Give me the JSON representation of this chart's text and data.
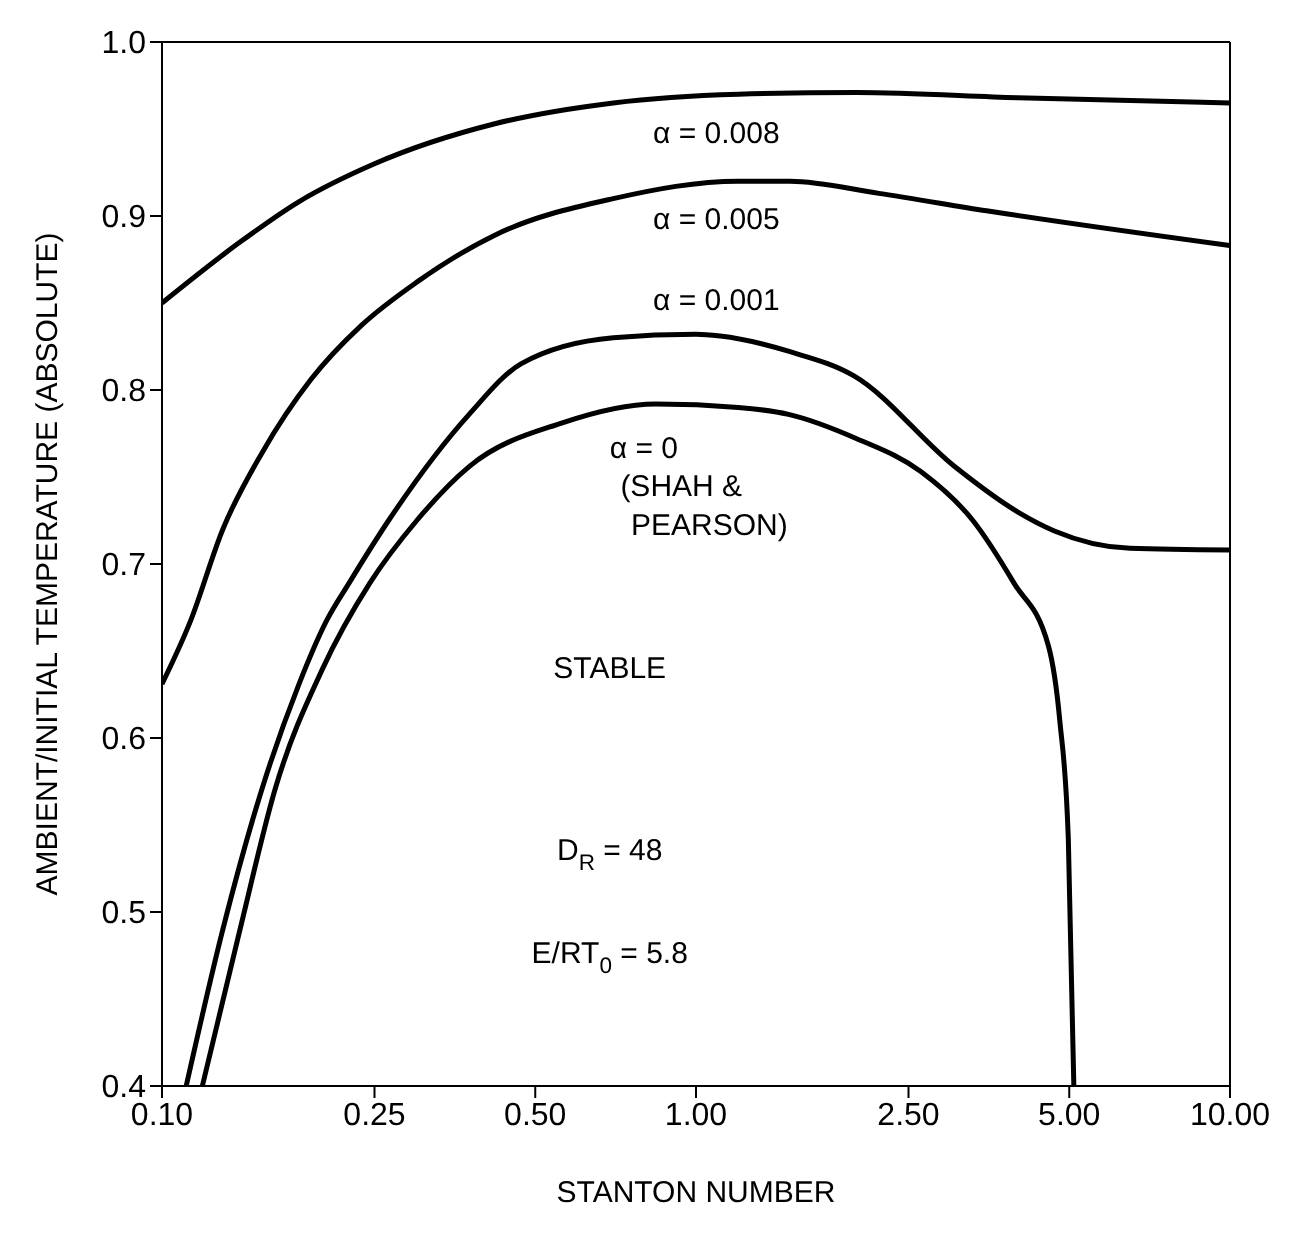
{
  "chart_data": {
    "type": "line",
    "xlabel": "STANTON NUMBER",
    "ylabel": "AMBIENT/INITIAL TEMPERATURE (ABSOLUTE)",
    "log": "x",
    "xlim": [
      0.1,
      10
    ],
    "ylim": [
      0.4,
      1.0
    ],
    "xticks": [
      {
        "value": 0.1,
        "label": "0.10"
      },
      {
        "value": 0.25,
        "label": "0.25"
      },
      {
        "value": 0.5,
        "label": "0.50"
      },
      {
        "value": 1,
        "label": "1.00"
      },
      {
        "value": 2.5,
        "label": "2.50"
      },
      {
        "value": 5,
        "label": "5.00"
      },
      {
        "value": 10,
        "label": "10.00"
      }
    ],
    "yticks": [
      0.4,
      0.5,
      0.6,
      0.7,
      0.8,
      0.9,
      {
        "value": 1.0,
        "label": "1.0"
      }
    ],
    "grid": false,
    "legend": false,
    "marker": "none",
    "line_style": "solid",
    "series": [
      {
        "color": "#000000",
        "x": [
          0.1,
          0.14,
          0.18,
          0.25,
          0.42,
          0.7,
          1.2,
          2,
          4,
          10
        ],
        "values": [
          0.85,
          0.885,
          0.908,
          0.93,
          0.953,
          0.965,
          0.97,
          0.971,
          0.968,
          0.965
        ]
      },
      {
        "color": "#000000",
        "x": [
          0.1,
          0.113,
          0.13,
          0.154,
          0.19,
          0.236,
          0.3,
          0.42,
          0.7,
          1.2,
          1.5,
          2.2,
          3.5,
          10
        ],
        "values": [
          0.631,
          0.667,
          0.72,
          0.764,
          0.806,
          0.837,
          0.862,
          0.889,
          0.91,
          0.92,
          0.92,
          0.913,
          0.903,
          0.883
        ]
      },
      {
        "color": "#000000",
        "x": [
          0.111,
          0.13,
          0.154,
          0.18,
          0.203,
          0.224,
          0.267,
          0.376,
          0.47,
          0.7,
          1.0,
          1.11,
          1.5,
          1.98,
          3.05,
          4.0,
          4.69,
          6.5,
          10
        ],
        "values": [
          0.4,
          0.49,
          0.571,
          0.63,
          0.667,
          0.689,
          0.726,
          0.786,
          0.815,
          0.83,
          0.832,
          0.831,
          0.822,
          0.808,
          0.756,
          0.73,
          0.719,
          0.709,
          0.708
        ]
      },
      {
        "color": "#000000",
        "x": [
          0.119,
          0.14,
          0.163,
          0.2,
          0.245,
          0.3,
          0.376,
          0.56,
          0.84,
          1.2,
          1.49,
          2.0,
          2.64,
          3.3,
          3.94,
          4.57,
          4.8,
          4.98,
          5.1
        ],
        "values": [
          0.4,
          0.49,
          0.571,
          0.64,
          0.689,
          0.725,
          0.756,
          0.781,
          0.792,
          0.79,
          0.786,
          0.772,
          0.753,
          0.725,
          0.689,
          0.653,
          0.61,
          0.542,
          0.4
        ]
      }
    ],
    "annotations": [
      "α = 0.008",
      "α = 0.005",
      "α = 0.001",
      "α = 0",
      "(SHAH &",
      "PEARSON)",
      "STABLE",
      "D$_{R}$ = 48",
      "E/RT$_{0}$ = 5.8"
    ]
  }
}
